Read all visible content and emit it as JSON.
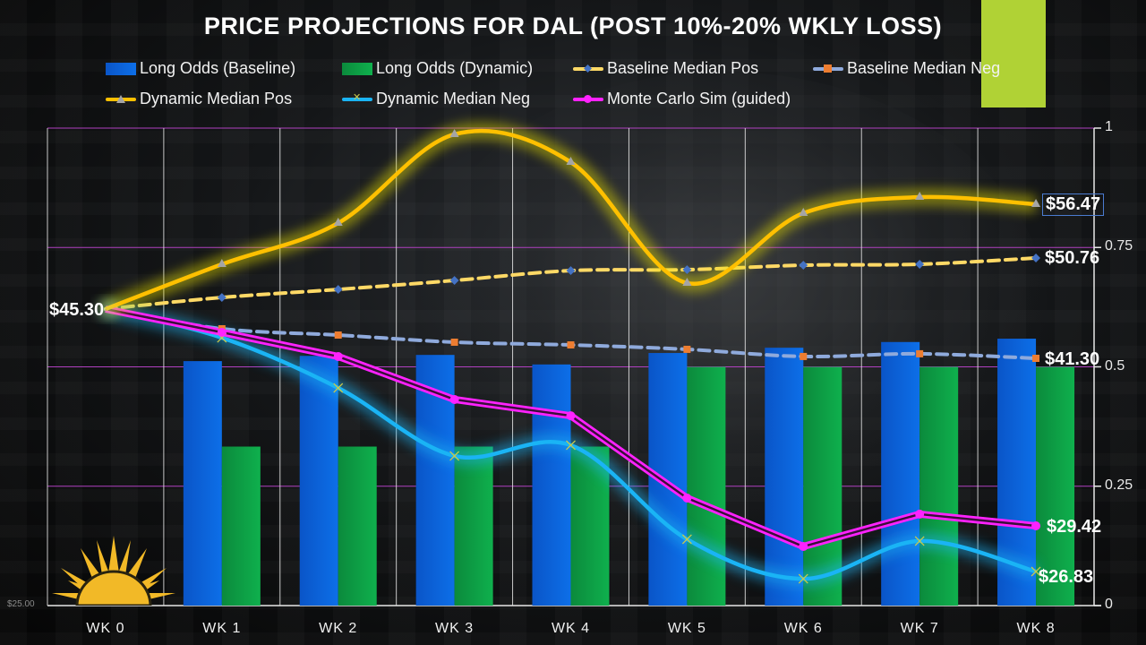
{
  "title": "PRICE PROJECTIONS FOR DAL (POST 10%-20% WKLY LOSS)",
  "colors": {
    "baseline_bar": "#0d63e0",
    "dynamic_bar": "#0ea84a",
    "baseline_median_pos": "#ffd966",
    "baseline_median_pos_marker": "#4472c4",
    "baseline_median_neg": "#8faadc",
    "baseline_median_neg_marker": "#ed7d31",
    "dynamic_median_pos": "#ffc000",
    "dynamic_median_pos_marker": "#a5a5a5",
    "dynamic_median_neg": "#1ab4f5",
    "dynamic_median_neg_marker": "#c9c94a",
    "monte_carlo": "#ff22ff",
    "accent_block": "#b0d235",
    "gridline": "#b040c0"
  },
  "price_axis_min_label": "$25.00",
  "logo_icon": "sun-icon",
  "chart_data": {
    "type": "bar",
    "title": "PRICE PROJECTIONS FOR DAL (POST 10%-20% WKLY LOSS)",
    "categories": [
      "WK 0",
      "WK 1",
      "WK 2",
      "WK 3",
      "WK 4",
      "WK 5",
      "WK 6",
      "WK 7",
      "WK 8"
    ],
    "secondary_axis": {
      "ylim": [
        0,
        1
      ],
      "ticks": [
        "0",
        "0.25",
        "0.5",
        "0.75",
        "1"
      ],
      "position": "right"
    },
    "primary_axis": {
      "min": 25,
      "min_label": "$25.00"
    },
    "bar_series": [
      {
        "name": "Long Odds (Baseline)",
        "axis": "secondary",
        "values": [
          null,
          0.512,
          0.523,
          0.525,
          0.505,
          0.529,
          0.54,
          0.552,
          0.559
        ]
      },
      {
        "name": "Long Odds (Dynamic)",
        "axis": "secondary",
        "values": [
          null,
          0.333,
          0.333,
          0.333,
          0.333,
          0.5,
          0.5,
          0.5,
          0.5
        ]
      }
    ],
    "line_series": [
      {
        "name": "Baseline Median Pos",
        "axis": "primary",
        "style": "dashed",
        "marker": "diamond",
        "values": [
          45.3,
          46.54,
          47.4,
          48.36,
          49.41,
          49.51,
          49.99,
          50.09,
          50.76
        ]
      },
      {
        "name": "Baseline Median Neg",
        "axis": "primary",
        "style": "dashed",
        "marker": "square",
        "values": [
          45.3,
          43.7,
          43.19,
          42.61,
          42.39,
          42.03,
          41.45,
          41.67,
          41.3
        ]
      },
      {
        "name": "Dynamic Median Pos",
        "axis": "primary",
        "style": "smooth-glow",
        "marker": "triangle",
        "values": [
          45.3,
          50.09,
          54.47,
          59.71,
          58.42,
          48.08,
          55.52,
          56.8,
          56.47
        ]
      },
      {
        "name": "Dynamic Median Neg",
        "axis": "primary",
        "style": "smooth-glow",
        "marker": "x",
        "values": [
          45.3,
          42.97,
          39.2,
          34.38,
          35.14,
          28.66,
          26.44,
          28.56,
          26.83
        ]
      },
      {
        "name": "Monte Carlo Sim (guided)",
        "axis": "primary",
        "style": "double",
        "marker": "circle",
        "values": [
          45.3,
          43.41,
          41.45,
          38.38,
          37.23,
          31.39,
          28.25,
          30.25,
          29.42
        ]
      }
    ],
    "legend": [
      "Long Odds (Baseline)",
      "Long Odds (Dynamic)",
      "Baseline Median Pos",
      "Baseline Median Neg",
      "Dynamic Median Pos",
      "Dynamic Median Neg",
      "Monte Carlo Sim (guided)"
    ],
    "legend_position": "top",
    "data_labels": {
      "start": "$45.30",
      "dynamic_median_pos_end": "$56.47",
      "baseline_median_pos_end": "$50.76",
      "baseline_median_neg_end": "$41.30",
      "monte_carlo_end": "$29.42",
      "dynamic_median_neg_end": "$26.83"
    },
    "grid": true
  }
}
